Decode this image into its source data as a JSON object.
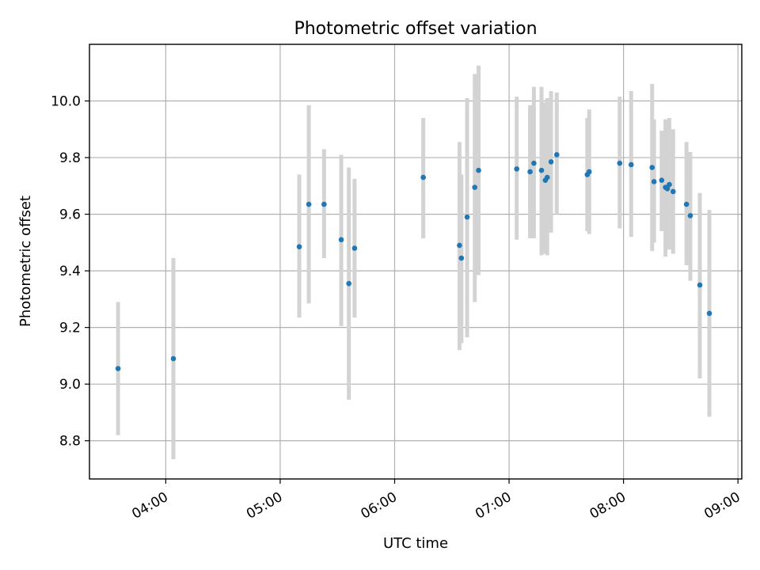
{
  "chart_data": {
    "type": "scatter",
    "title": "Photometric offset variation",
    "xlabel": "UTC time",
    "ylabel": "Photometric offset",
    "x_unit": "HH:MM",
    "xlim": [
      "03:20",
      "09:02"
    ],
    "ylim": [
      8.665,
      10.2
    ],
    "xticks": [
      "04:00",
      "05:00",
      "06:00",
      "07:00",
      "08:00",
      "09:00"
    ],
    "yticks": [
      8.8,
      9.0,
      9.2,
      9.4,
      9.6,
      9.8,
      10.0
    ],
    "grid": true,
    "colors": {
      "points": "#1f77b4",
      "errorbars": "#d3d3d3",
      "grid": "#b0b0b0"
    },
    "points": [
      {
        "x": "03:35",
        "y": 9.055,
        "low": 8.82,
        "high": 9.29
      },
      {
        "x": "04:04",
        "y": 9.09,
        "low": 8.735,
        "high": 9.445
      },
      {
        "x": "05:10",
        "y": 9.485,
        "low": 9.235,
        "high": 9.74
      },
      {
        "x": "05:15",
        "y": 9.635,
        "low": 9.285,
        "high": 9.985
      },
      {
        "x": "05:23",
        "y": 9.635,
        "low": 9.445,
        "high": 9.83
      },
      {
        "x": "05:32",
        "y": 9.51,
        "low": 9.205,
        "high": 9.81
      },
      {
        "x": "05:36",
        "y": 9.355,
        "low": 8.945,
        "high": 9.765
      },
      {
        "x": "05:39",
        "y": 9.48,
        "low": 9.235,
        "high": 9.725
      },
      {
        "x": "06:15",
        "y": 9.73,
        "low": 9.515,
        "high": 9.94
      },
      {
        "x": "06:34",
        "y": 9.49,
        "low": 9.12,
        "high": 9.855
      },
      {
        "x": "06:35",
        "y": 9.445,
        "low": 9.145,
        "high": 9.74
      },
      {
        "x": "06:38",
        "y": 9.59,
        "low": 9.165,
        "high": 10.01
      },
      {
        "x": "06:42",
        "y": 9.695,
        "low": 9.29,
        "high": 10.095
      },
      {
        "x": "06:44",
        "y": 9.755,
        "low": 9.385,
        "high": 10.125
      },
      {
        "x": "07:04",
        "y": 9.76,
        "low": 9.51,
        "high": 10.015
      },
      {
        "x": "07:11",
        "y": 9.75,
        "low": 9.515,
        "high": 9.985
      },
      {
        "x": "07:13",
        "y": 9.78,
        "low": 9.515,
        "high": 10.05
      },
      {
        "x": "07:17",
        "y": 9.755,
        "low": 9.455,
        "high": 10.05
      },
      {
        "x": "07:19",
        "y": 9.72,
        "low": 9.46,
        "high": 9.995
      },
      {
        "x": "07:20",
        "y": 9.73,
        "low": 9.455,
        "high": 10.01
      },
      {
        "x": "07:22",
        "y": 9.785,
        "low": 9.535,
        "high": 10.035
      },
      {
        "x": "07:25",
        "y": 9.81,
        "low": 9.6,
        "high": 10.03
      },
      {
        "x": "07:41",
        "y": 9.74,
        "low": 9.54,
        "high": 9.94
      },
      {
        "x": "07:42",
        "y": 9.75,
        "low": 9.53,
        "high": 9.97
      },
      {
        "x": "07:58",
        "y": 9.78,
        "low": 9.55,
        "high": 10.015
      },
      {
        "x": "08:04",
        "y": 9.775,
        "low": 9.52,
        "high": 10.035
      },
      {
        "x": "08:15",
        "y": 9.765,
        "low": 9.47,
        "high": 10.06
      },
      {
        "x": "08:16",
        "y": 9.715,
        "low": 9.5,
        "high": 9.935
      },
      {
        "x": "08:20",
        "y": 9.72,
        "low": 9.54,
        "high": 9.895
      },
      {
        "x": "08:22",
        "y": 9.695,
        "low": 9.45,
        "high": 9.935
      },
      {
        "x": "08:23",
        "y": 9.69,
        "low": 9.485,
        "high": 9.935
      },
      {
        "x": "08:24",
        "y": 9.705,
        "low": 9.475,
        "high": 9.94
      },
      {
        "x": "08:26",
        "y": 9.68,
        "low": 9.46,
        "high": 9.9
      },
      {
        "x": "08:33",
        "y": 9.635,
        "low": 9.42,
        "high": 9.855
      },
      {
        "x": "08:35",
        "y": 9.595,
        "low": 9.365,
        "high": 9.82
      },
      {
        "x": "08:40",
        "y": 9.35,
        "low": 9.02,
        "high": 9.675
      },
      {
        "x": "08:45",
        "y": 9.25,
        "low": 8.885,
        "high": 9.615
      }
    ]
  }
}
